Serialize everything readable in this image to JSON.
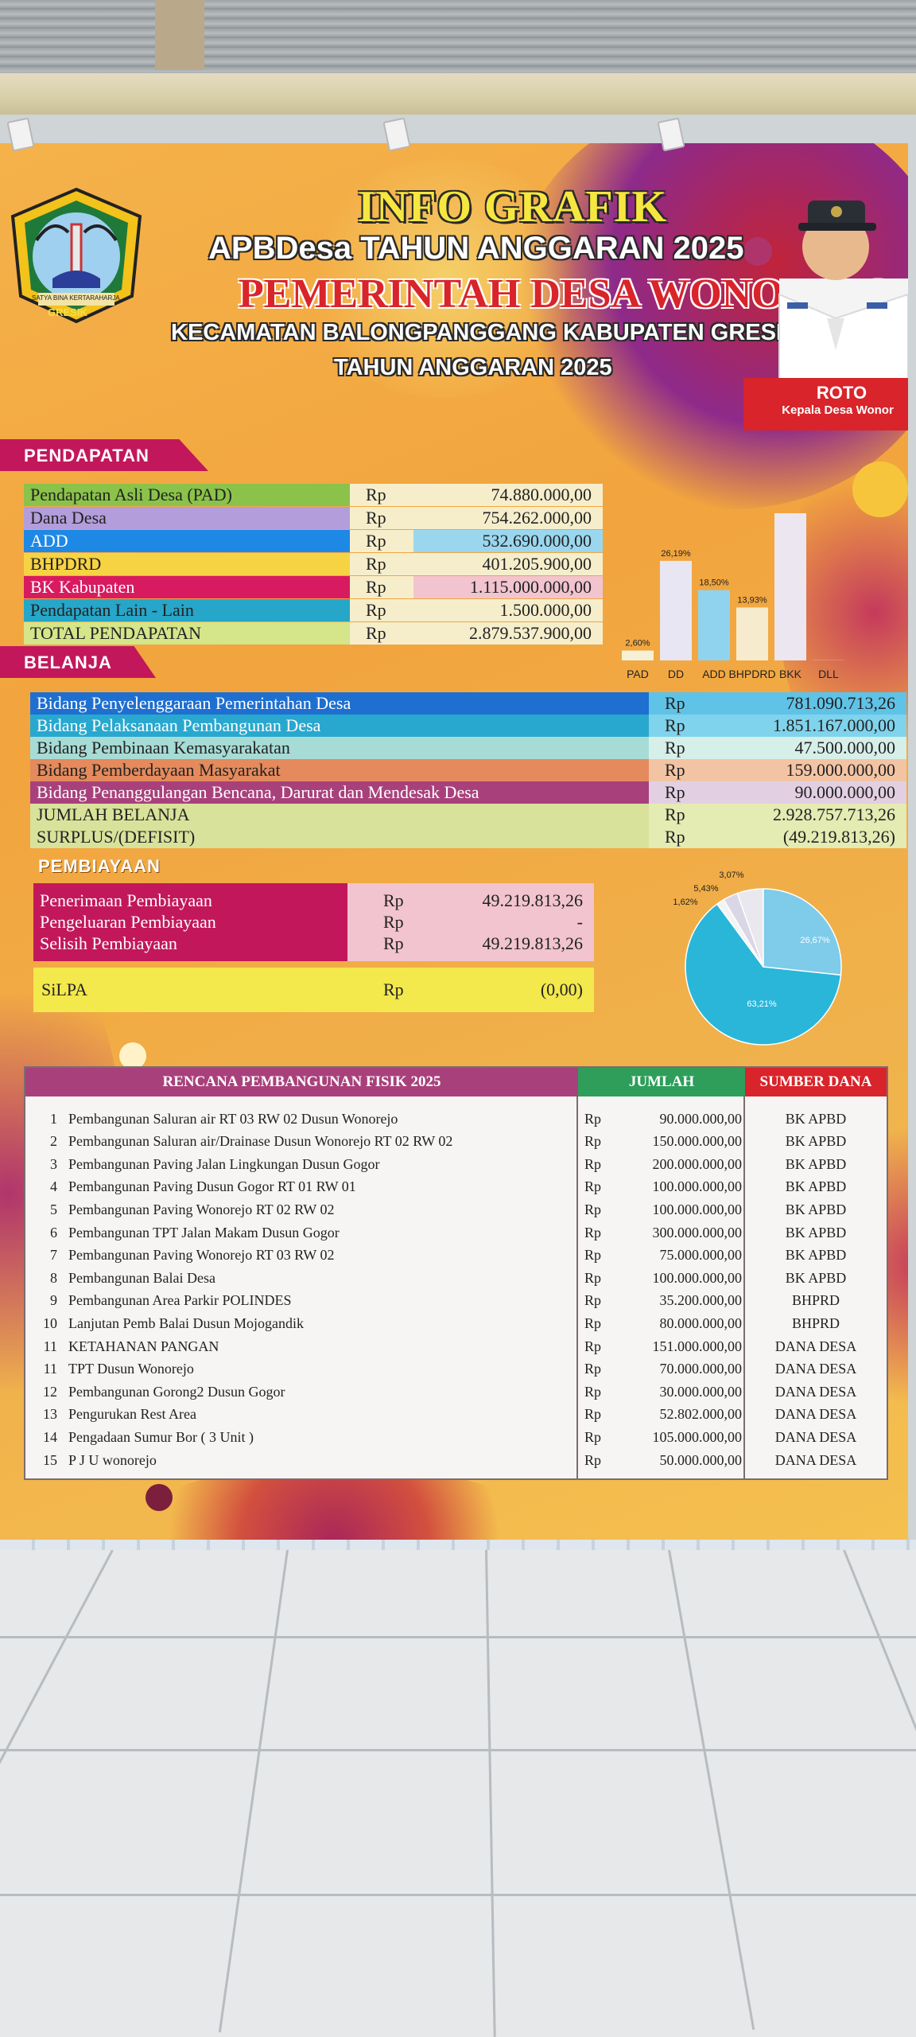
{
  "header": {
    "info": "INFO GRAFIK",
    "apb": "APBDesa TAHUN ANGGARAN 2025",
    "pemerintah": "PEMERINTAH DESA WONOREJO",
    "kecamatan": "KECAMATAN BALONGPANGGANG KABUPATEN GRESIK",
    "tahun": "TAHUN ANGGARAN 2025",
    "logo_text": "GRESIK",
    "logo_motto": "SATYA BINA KERTARAHARJA",
    "person_name": "ROTO",
    "person_title": "Kepala Desa Wonor"
  },
  "pendapatan": {
    "title": "PENDAPATAN",
    "rows": [
      {
        "label": "Pendapatan Asli Desa (PAD)",
        "rp": "Rp",
        "amount": "74.880.000,00",
        "color": "#8bc34a"
      },
      {
        "label": "Dana Desa",
        "rp": "Rp",
        "amount": "754.262.000,00",
        "color": "#b39ddb"
      },
      {
        "label": "ADD",
        "rp": "Rp",
        "amount": "532.690.000,00",
        "color": "#1e88e5"
      },
      {
        "label": "BHPDRD",
        "rp": "Rp",
        "amount": "401.205.900,00",
        "color": "#f6d343"
      },
      {
        "label": "BK Kabupaten",
        "rp": "Rp",
        "amount": "1.115.000.000,00",
        "color": "#d81b60"
      },
      {
        "label": "Pendapatan Lain - Lain",
        "rp": "Rp",
        "amount": "1.500.000,00",
        "color": "#26a6c8"
      },
      {
        "label": "TOTAL PENDAPATAN",
        "rp": "Rp",
        "amount": "2.879.537.900,00",
        "color": "#d4e58a"
      }
    ]
  },
  "chart_data": [
    {
      "type": "bar",
      "categories": [
        "PAD",
        "DD",
        "ADD",
        "BHPDRD",
        "BKK",
        "DLL"
      ],
      "values": [
        2.6,
        26.19,
        18.5,
        13.93,
        38.72,
        0.05
      ],
      "data_labels": [
        "2,60%",
        "26,19%",
        "18,50%",
        "13,93%",
        "",
        ""
      ],
      "colors": [
        "#f5f0d6",
        "#e8e6f2",
        "#8fd3ef",
        "#f6eccd",
        "#ece6f0",
        "#f0e6c8"
      ],
      "ylim": [
        0,
        45
      ]
    },
    {
      "type": "pie",
      "values": [
        63.21,
        26.67,
        5.43,
        3.07,
        1.62
      ],
      "data_labels": [
        "63,21%",
        "26,67%",
        "5,43%",
        "3,07%",
        "1,62%"
      ],
      "colors": [
        "#29b6d9",
        "#7ecbea",
        "#e8e8ee",
        "#d9d6e6",
        "#f3f3f3"
      ]
    }
  ],
  "belanja": {
    "title": "BELANJA",
    "rows": [
      {
        "label": "Bidang Penyelenggaraan Pemerintahan Desa",
        "rp": "Rp",
        "amount": "781.090.713,26",
        "color": "#1e6fd0",
        "amtcolor": "#5fc3e8",
        "textcolor": "#ffffff"
      },
      {
        "label": "Bidang Pelaksanaan Pembangunan Desa",
        "rp": "Rp",
        "amount": "1.851.167.000,00",
        "color": "#29a8cf",
        "amtcolor": "#7fd3ec",
        "textcolor": "#ffffff"
      },
      {
        "label": "Bidang Pembinaan Kemasyarakatan",
        "rp": "Rp",
        "amount": "47.500.000,00",
        "color": "#a7dcd6",
        "amtcolor": "#d6efe8",
        "textcolor": "#222222"
      },
      {
        "label": "Bidang Pemberdayaan Masyarakat",
        "rp": "Rp",
        "amount": "159.000.000,00",
        "color": "#e58a5c",
        "amtcolor": "#f3c4a4",
        "textcolor": "#222222"
      },
      {
        "label": "Bidang Penanggulangan Bencana, Darurat dan Mendesak Desa",
        "rp": "Rp",
        "amount": "90.000.000,00",
        "color": "#a8417b",
        "amtcolor": "#e2d0e2",
        "textcolor": "#ffffff"
      },
      {
        "label": "JUMLAH BELANJA",
        "rp": "Rp",
        "amount": "2.928.757.713,26",
        "color": "#d9e29a",
        "amtcolor": "#e4ebb3",
        "textcolor": "#222222"
      },
      {
        "label": "SURPLUS/(DEFISIT)",
        "rp": "Rp",
        "amount": "(49.219.813,26)",
        "color": "#d9e29a",
        "amtcolor": "#e4ebb3",
        "textcolor": "#222222"
      }
    ]
  },
  "pembiayaan": {
    "title": "PEMBIAYAAN",
    "rows": [
      {
        "label": "Penerimaan Pembiayaan",
        "rp": "Rp",
        "amount": "49.219.813,26"
      },
      {
        "label": "Pengeluaran Pembiayaan",
        "rp": "Rp",
        "amount": "-"
      },
      {
        "label": "Selisih Pembiayaan",
        "rp": "Rp",
        "amount": "49.219.813,26"
      }
    ],
    "silpa": {
      "label": "SiLPA",
      "rp": "Rp",
      "amount": "(0,00)"
    }
  },
  "fisik": {
    "title": "RENCANA PEMBANGUNAN FISIK 2025",
    "col_jumlah": "JUMLAH",
    "col_sumber": "SUMBER DANA",
    "rows": [
      {
        "no": "1",
        "uraian": "Pembangunan Saluran air RT 03 RW 02 Dusun Wonorejo",
        "rp": "Rp",
        "jumlah": "90.000.000,00",
        "sumber": "BK APBD"
      },
      {
        "no": "2",
        "uraian": "Pembangunan Saluran air/Drainase Dusun Wonorejo RT 02 RW 02",
        "rp": "Rp",
        "jumlah": "150.000.000,00",
        "sumber": "BK APBD"
      },
      {
        "no": "3",
        "uraian": "Pembangunan Paving Jalan Lingkungan Dusun Gogor",
        "rp": "Rp",
        "jumlah": "200.000.000,00",
        "sumber": "BK APBD"
      },
      {
        "no": "4",
        "uraian": "Pembangunan Paving Dusun Gogor RT 01 RW 01",
        "rp": "Rp",
        "jumlah": "100.000.000,00",
        "sumber": "BK APBD"
      },
      {
        "no": "5",
        "uraian": "Pembangunan Paving Wonorejo RT 02 RW 02",
        "rp": "Rp",
        "jumlah": "100.000.000,00",
        "sumber": "BK APBD"
      },
      {
        "no": "6",
        "uraian": "Pembangunan TPT Jalan Makam Dusun Gogor",
        "rp": "Rp",
        "jumlah": "300.000.000,00",
        "sumber": "BK APBD"
      },
      {
        "no": "7",
        "uraian": "Pembangunan Paving Wonorejo RT 03 RW 02",
        "rp": "Rp",
        "jumlah": "75.000.000,00",
        "sumber": "BK APBD"
      },
      {
        "no": "8",
        "uraian": "Pembangunan Balai Desa",
        "rp": "Rp",
        "jumlah": "100.000.000,00",
        "sumber": "BK APBD"
      },
      {
        "no": "9",
        "uraian": "Pembangunan Area Parkir POLINDES",
        "rp": "Rp",
        "jumlah": "35.200.000,00",
        "sumber": "BHPRD"
      },
      {
        "no": "10",
        "uraian": "Lanjutan Pemb Balai Dusun Mojogandik",
        "rp": "Rp",
        "jumlah": "80.000.000,00",
        "sumber": "BHPRD"
      },
      {
        "no": "11",
        "uraian": "KETAHANAN PANGAN",
        "rp": "Rp",
        "jumlah": "151.000.000,00",
        "sumber": "DANA DESA"
      },
      {
        "no": "11",
        "uraian": "TPT Dusun Wonorejo",
        "rp": "Rp",
        "jumlah": "70.000.000,00",
        "sumber": "DANA DESA"
      },
      {
        "no": "12",
        "uraian": "Pembangunan Gorong2 Dusun Gogor",
        "rp": "Rp",
        "jumlah": "30.000.000,00",
        "sumber": "DANA DESA"
      },
      {
        "no": "13",
        "uraian": "Pengurukan Rest Area",
        "rp": "Rp",
        "jumlah": "52.802.000,00",
        "sumber": "DANA DESA"
      },
      {
        "no": "14",
        "uraian": "Pengadaan Sumur Bor ( 3 Unit )",
        "rp": "Rp",
        "jumlah": "105.000.000,00",
        "sumber": "DANA DESA"
      },
      {
        "no": "15",
        "uraian": "P J U wonorejo",
        "rp": "Rp",
        "jumlah": "50.000.000,00",
        "sumber": "DANA DESA"
      }
    ]
  }
}
